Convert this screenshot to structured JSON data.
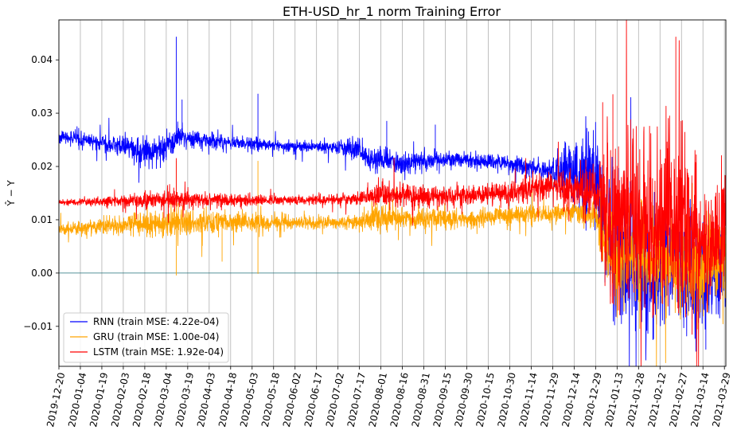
{
  "chart_data": {
    "type": "line",
    "title": "ETH-USD_hr_1 norm Training Error",
    "ylabel": "Ŷ − Y",
    "xlabel": "",
    "x_start": "2019-12-20",
    "x_end": "2021-03-30",
    "ylim": [
      -0.0175,
      0.0475
    ],
    "yticks": [
      -0.01,
      0.0,
      0.01,
      0.02,
      0.03,
      0.04
    ],
    "ytick_labels": [
      "−0.01",
      "0.00",
      "0.01",
      "0.02",
      "0.03",
      "0.04"
    ],
    "xticks": [
      "2019-12-20",
      "2020-01-04",
      "2020-01-19",
      "2020-02-03",
      "2020-02-18",
      "2020-03-04",
      "2020-03-19",
      "2020-04-03",
      "2020-04-18",
      "2020-05-03",
      "2020-05-18",
      "2020-06-02",
      "2020-06-17",
      "2020-07-02",
      "2020-07-17",
      "2020-08-01",
      "2020-08-16",
      "2020-08-31",
      "2020-09-15",
      "2020-09-30",
      "2020-10-15",
      "2020-10-30",
      "2020-11-14",
      "2020-11-29",
      "2020-12-14",
      "2020-12-29",
      "2021-01-13",
      "2021-01-28",
      "2021-02-12",
      "2021-02-27",
      "2021-03-14",
      "2021-03-29"
    ],
    "grid": "vertical",
    "zero_line": true,
    "legend_position": "lower-left",
    "series": [
      {
        "name": "RNN (train MSE: 4.22e-04)",
        "color": "#0000ff",
        "points": [
          [
            "2019-12-20",
            0.0255
          ],
          [
            "2020-01-04",
            0.0252
          ],
          [
            "2020-01-19",
            0.0245
          ],
          [
            "2020-02-03",
            0.0238
          ],
          [
            "2020-02-18",
            0.0225
          ],
          [
            "2020-03-04",
            0.0235
          ],
          [
            "2020-03-12",
            0.0255
          ],
          [
            "2020-03-19",
            0.0252
          ],
          [
            "2020-04-03",
            0.025
          ],
          [
            "2020-04-18",
            0.0245
          ],
          [
            "2020-05-03",
            0.0242
          ],
          [
            "2020-05-18",
            0.024
          ],
          [
            "2020-06-02",
            0.0238
          ],
          [
            "2020-06-17",
            0.0237
          ],
          [
            "2020-07-02",
            0.0236
          ],
          [
            "2020-07-17",
            0.0232
          ],
          [
            "2020-07-27",
            0.021
          ],
          [
            "2020-08-01",
            0.0215
          ],
          [
            "2020-08-16",
            0.0205
          ],
          [
            "2020-08-31",
            0.021
          ],
          [
            "2020-09-15",
            0.0212
          ],
          [
            "2020-09-30",
            0.0212
          ],
          [
            "2020-10-15",
            0.021
          ],
          [
            "2020-10-30",
            0.0205
          ],
          [
            "2020-11-14",
            0.02
          ],
          [
            "2020-11-29",
            0.019
          ],
          [
            "2020-12-14",
            0.0185
          ],
          [
            "2020-12-29",
            0.018
          ],
          [
            "2021-01-06",
            0.006
          ],
          [
            "2021-01-13",
            0.0015
          ],
          [
            "2021-01-28",
            0.001
          ],
          [
            "2021-02-12",
            -0.0005
          ],
          [
            "2021-02-20",
            0.004
          ],
          [
            "2021-02-27",
            0.0
          ],
          [
            "2021-03-14",
            -0.002
          ],
          [
            "2021-03-29",
            0.0005
          ]
        ],
        "noise": [
          0.0005,
          0.0006,
          0.0007,
          0.0009,
          0.0012,
          0.001,
          0.0012,
          0.0009,
          0.0007,
          0.0007,
          0.0006,
          0.0005,
          0.0005,
          0.0005,
          0.0006,
          0.0014,
          0.0012,
          0.0011,
          0.001,
          0.0008,
          0.0007,
          0.0007,
          0.0008,
          0.0008,
          0.0008,
          0.0009,
          0.004,
          0.005,
          0.005,
          0.0055,
          0.006,
          0.0055,
          0.005,
          0.005,
          0.005,
          0.0045
        ],
        "spikes": [
          [
            "2020-03-11",
            0.0443
          ],
          [
            "2020-03-15",
            0.0325
          ],
          [
            "2020-05-07",
            0.0336
          ],
          [
            "2020-08-05",
            0.0285
          ],
          [
            "2020-09-08",
            0.0278
          ],
          [
            "2021-01-16",
            -0.0095
          ],
          [
            "2021-02-07",
            -0.0125
          ],
          [
            "2021-03-16",
            -0.0143
          ]
        ]
      },
      {
        "name": "GRU (train MSE: 1.00e-04)",
        "color": "#ffa500",
        "points": [
          [
            "2019-12-20",
            0.0082
          ],
          [
            "2020-01-04",
            0.0085
          ],
          [
            "2020-01-19",
            0.0088
          ],
          [
            "2020-02-03",
            0.009
          ],
          [
            "2020-02-18",
            0.0093
          ],
          [
            "2020-03-04",
            0.0095
          ],
          [
            "2020-03-19",
            0.0097
          ],
          [
            "2020-04-03",
            0.0096
          ],
          [
            "2020-04-18",
            0.0095
          ],
          [
            "2020-05-03",
            0.0095
          ],
          [
            "2020-05-18",
            0.0095
          ],
          [
            "2020-06-02",
            0.0095
          ],
          [
            "2020-06-17",
            0.0094
          ],
          [
            "2020-07-02",
            0.0095
          ],
          [
            "2020-07-17",
            0.0097
          ],
          [
            "2020-08-01",
            0.0105
          ],
          [
            "2020-08-16",
            0.0102
          ],
          [
            "2020-08-31",
            0.01
          ],
          [
            "2020-09-15",
            0.01
          ],
          [
            "2020-09-30",
            0.0102
          ],
          [
            "2020-10-15",
            0.0105
          ],
          [
            "2020-10-30",
            0.0108
          ],
          [
            "2020-11-14",
            0.011
          ],
          [
            "2020-11-29",
            0.0112
          ],
          [
            "2020-12-14",
            0.0115
          ],
          [
            "2020-12-29",
            0.011
          ],
          [
            "2021-01-06",
            0.003
          ],
          [
            "2021-01-13",
            0.002
          ],
          [
            "2021-01-28",
            0.003
          ],
          [
            "2021-02-12",
            0.002
          ],
          [
            "2021-02-27",
            0.001
          ],
          [
            "2021-03-14",
            0.002
          ],
          [
            "2021-03-29",
            0.003
          ]
        ],
        "noise": [
          0.0005,
          0.0006,
          0.0008,
          0.0009,
          0.0012,
          0.0012,
          0.0012,
          0.001,
          0.0009,
          0.0008,
          0.0007,
          0.0006,
          0.0006,
          0.0006,
          0.0007,
          0.0012,
          0.001,
          0.001,
          0.0009,
          0.0008,
          0.0008,
          0.0008,
          0.0009,
          0.0009,
          0.001,
          0.0012,
          0.004,
          0.004,
          0.004,
          0.0042,
          0.0045,
          0.0042,
          0.004
        ],
        "spikes": [
          [
            "2020-03-11",
            -0.0004
          ],
          [
            "2020-03-11",
            0.021
          ],
          [
            "2020-05-07",
            -0.0001
          ],
          [
            "2020-05-07",
            0.021
          ],
          [
            "2020-04-12",
            0.0022
          ],
          [
            "2021-03-10",
            -0.0105
          ]
        ]
      },
      {
        "name": "LSTM (train MSE: 1.92e-04)",
        "color": "#ff0000",
        "points": [
          [
            "2019-12-20",
            0.0133
          ],
          [
            "2020-01-04",
            0.0133
          ],
          [
            "2020-01-19",
            0.0134
          ],
          [
            "2020-02-03",
            0.0135
          ],
          [
            "2020-02-18",
            0.0137
          ],
          [
            "2020-03-04",
            0.0138
          ],
          [
            "2020-03-19",
            0.0138
          ],
          [
            "2020-04-03",
            0.0137
          ],
          [
            "2020-04-18",
            0.0137
          ],
          [
            "2020-05-03",
            0.0137
          ],
          [
            "2020-05-18",
            0.0137
          ],
          [
            "2020-06-02",
            0.0137
          ],
          [
            "2020-06-17",
            0.0137
          ],
          [
            "2020-07-02",
            0.0138
          ],
          [
            "2020-07-17",
            0.014
          ],
          [
            "2020-08-01",
            0.0148
          ],
          [
            "2020-08-16",
            0.0145
          ],
          [
            "2020-08-31",
            0.0143
          ],
          [
            "2020-09-15",
            0.0143
          ],
          [
            "2020-09-30",
            0.0145
          ],
          [
            "2020-10-15",
            0.0148
          ],
          [
            "2020-10-30",
            0.0152
          ],
          [
            "2020-11-14",
            0.0158
          ],
          [
            "2020-11-29",
            0.0162
          ],
          [
            "2020-12-14",
            0.016
          ],
          [
            "2020-12-29",
            0.0155
          ],
          [
            "2021-01-06",
            0.012
          ],
          [
            "2021-01-13",
            0.011
          ],
          [
            "2021-01-28",
            0.01
          ],
          [
            "2021-02-07",
            0.006
          ],
          [
            "2021-02-20",
            0.012
          ],
          [
            "2021-02-27",
            0.011
          ],
          [
            "2021-03-14",
            0.005
          ],
          [
            "2021-03-29",
            0.008
          ]
        ],
        "noise": [
          0.0003,
          0.0003,
          0.0004,
          0.0005,
          0.0008,
          0.0008,
          0.0007,
          0.0006,
          0.0005,
          0.0005,
          0.0005,
          0.0004,
          0.0004,
          0.0005,
          0.0006,
          0.0012,
          0.0012,
          0.0011,
          0.001,
          0.0009,
          0.0009,
          0.001,
          0.0012,
          0.0015,
          0.0018,
          0.0025,
          0.007,
          0.008,
          0.008,
          0.0075,
          0.008,
          0.0075,
          0.0065,
          0.006
        ],
        "spikes": [
          [
            "2020-03-11",
            0.0215
          ],
          [
            "2021-01-10",
            0.0335
          ],
          [
            "2021-01-03",
            0.032
          ],
          [
            "2021-02-23",
            0.0443
          ],
          [
            "2021-02-25",
            -0.0075
          ]
        ]
      }
    ]
  }
}
